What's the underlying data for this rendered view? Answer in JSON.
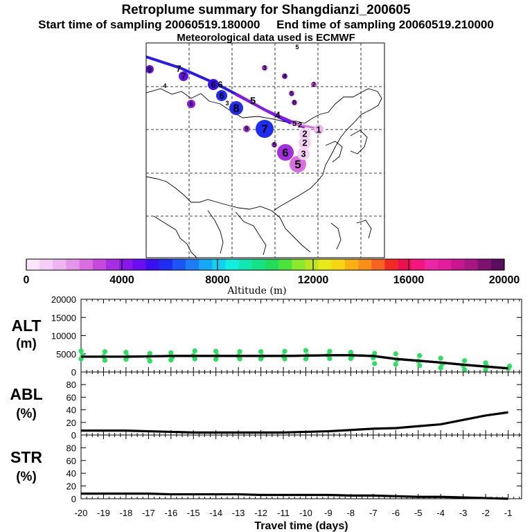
{
  "title": "Retroplume summary for Shangdianzi_200605",
  "subtitle_start": "Start time of sampling 20060519.180000",
  "subtitle_end": "End time of sampling 20060519.210000",
  "met_note": "Meteorological data used is ECMWF",
  "colorbar": {
    "label": "Altitude (m)",
    "ticks": [
      "0",
      "4000",
      "8000",
      "12000",
      "16000",
      "20000"
    ],
    "colors": [
      "#fbe6fb",
      "#f5cff5",
      "#eeb5ee",
      "#e595e8",
      "#d86ee0",
      "#c847dc",
      "#a62ee0",
      "#8a17ea",
      "#6a0ef2",
      "#3b10f0",
      "#1f2cf2",
      "#1a55f7",
      "#1b7cf6",
      "#16a7f5",
      "#0fd2f2",
      "#10eee0",
      "#0fe8ae",
      "#13e486",
      "#22dd5a",
      "#4ce43a",
      "#88ea2a",
      "#bde51f",
      "#e7e918",
      "#f6d60f",
      "#f8b013",
      "#f88f18",
      "#f6641d",
      "#f22a24",
      "#f00e52",
      "#f5157e",
      "#f025a5",
      "#e21c9c",
      "#c8168e",
      "#a81682",
      "#7d1270",
      "#5c0d5f"
    ]
  },
  "map": {
    "plume_labels": [
      {
        "text": "5",
        "x": 430,
        "y": 237,
        "size": 17,
        "color": "#d86ee0",
        "r": 12
      },
      {
        "text": "6",
        "x": 412,
        "y": 220,
        "size": 17,
        "color": "#a62ee0",
        "r": 12
      },
      {
        "text": "5",
        "x": 396,
        "y": 209,
        "size": 9,
        "color": "#a62ee0",
        "r": 4
      },
      {
        "text": "3",
        "x": 438,
        "y": 222,
        "size": 13,
        "color": "#f5cff5",
        "r": 9
      },
      {
        "text": "2",
        "x": 440,
        "y": 206,
        "size": 13,
        "color": "#f5cff5",
        "r": 9
      },
      {
        "text": "2",
        "x": 440,
        "y": 193,
        "size": 13,
        "color": "#f5cff5",
        "r": 8
      },
      {
        "text": "1",
        "x": 460,
        "y": 187,
        "size": 13,
        "color": "#eeb5ee",
        "r": 7
      },
      {
        "text": "5",
        "x": 425,
        "y": 178,
        "size": 11,
        "color": "#e595e8",
        "r": 0
      },
      {
        "text": "2",
        "x": 433,
        "y": 180,
        "size": 11,
        "color": "#eeb5ee",
        "r": 0
      },
      {
        "text": "4",
        "x": 401,
        "y": 166,
        "size": 13,
        "color": "#000000",
        "r": 0
      },
      {
        "text": "7",
        "x": 382,
        "y": 186,
        "size": 17,
        "color": "#1f2cf2",
        "r": 13
      },
      {
        "text": "9",
        "x": 356,
        "y": 186,
        "size": 9,
        "color": "#a62ee0",
        "r": 5
      },
      {
        "text": "8",
        "x": 341,
        "y": 156,
        "size": 17,
        "color": "#1f2cf2",
        "r": 10
      },
      {
        "text": "5",
        "x": 365,
        "y": 145,
        "size": 15,
        "color": "#000000",
        "r": 0
      },
      {
        "text": "3",
        "x": 328,
        "y": 149,
        "size": 9,
        "color": "#000000",
        "r": 0
      },
      {
        "text": "6",
        "x": 320,
        "y": 138,
        "size": 13,
        "color": "#1f2cf2",
        "r": 8
      },
      {
        "text": "6",
        "x": 308,
        "y": 122,
        "size": 13,
        "color": "#3b10f0",
        "r": 8
      },
      {
        "text": "6",
        "x": 318,
        "y": 122,
        "size": 13,
        "color": "#000000",
        "r": 0
      },
      {
        "text": "7",
        "x": 265,
        "y": 110,
        "size": 13,
        "color": "#6a0ef2",
        "r": 7
      },
      {
        "text": "7",
        "x": 258,
        "y": 99,
        "size": 13,
        "color": "#000000",
        "r": 0
      },
      {
        "text": "9",
        "x": 216,
        "y": 100,
        "size": 11,
        "color": "#6a0ef2",
        "r": 6
      },
      {
        "text": "4",
        "x": 238,
        "y": 124,
        "size": 9,
        "color": "#000000",
        "r": 0
      },
      {
        "text": "6",
        "x": 276,
        "y": 150,
        "size": 9,
        "color": "#8a17ea",
        "r": 6
      },
      {
        "text": "3",
        "x": 382,
        "y": 98,
        "size": 9,
        "color": "#a62ee0",
        "r": 4
      },
      {
        "text": "4",
        "x": 411,
        "y": 110,
        "size": 9,
        "color": "#8a17ea",
        "r": 4
      },
      {
        "text": "5",
        "x": 429,
        "y": 68,
        "size": 9,
        "color": "#a62ee0",
        "r": 0
      },
      {
        "text": "2",
        "x": 453,
        "y": 122,
        "size": 9,
        "color": "#c847dc",
        "r": 4
      },
      {
        "text": "5",
        "x": 421,
        "y": 135,
        "size": 9,
        "color": "#a62ee0",
        "r": 4
      },
      {
        "text": "8",
        "x": 425,
        "y": 148,
        "size": 9,
        "color": "#a62ee0",
        "r": 4
      }
    ]
  },
  "chart_data": [
    {
      "type": "line",
      "panel": "ALT",
      "ylabel_line1": "ALT",
      "ylabel_line2": "(m)",
      "xlabel": "Travel time (days)",
      "x_ticks": [
        "-20",
        "-19",
        "-18",
        "-17",
        "-16",
        "-15",
        "-14",
        "-13",
        "-12",
        "-11",
        "-10",
        "-9",
        "-8",
        "-7",
        "-6",
        "-5",
        "-4",
        "-3",
        "-2",
        "-1"
      ],
      "y_ticks": [
        "0",
        "5000",
        "10000",
        "15000",
        "20000"
      ],
      "ylim": [
        0,
        20000
      ],
      "xlim": [
        -20,
        -0.4
      ],
      "series": [
        {
          "name": "mean altitude",
          "x": [
            -20,
            -19,
            -18,
            -17,
            -16,
            -15,
            -14,
            -13,
            -12,
            -11,
            -10,
            -9,
            -8,
            -7,
            -6,
            -5,
            -4,
            -3,
            -2,
            -1
          ],
          "values": [
            4200,
            4200,
            4200,
            4300,
            4400,
            4400,
            4400,
            4400,
            4400,
            4400,
            4500,
            4600,
            4600,
            4400,
            3600,
            3100,
            2600,
            2000,
            1500,
            1000
          ]
        },
        {
          "name": "cluster altitudes",
          "x": [
            -20,
            -20,
            -20,
            -19,
            -19,
            -19,
            -18,
            -18,
            -18,
            -17,
            -17,
            -17,
            -16,
            -16,
            -16,
            -15,
            -15,
            -15,
            -14,
            -14,
            -14,
            -13,
            -13,
            -13,
            -12,
            -12,
            -12,
            -11,
            -11,
            -11,
            -10,
            -10,
            -10,
            -9,
            -9,
            -9,
            -8,
            -8,
            -8,
            -7,
            -7,
            -7,
            -6,
            -6,
            -6,
            -5,
            -5,
            -5,
            -4,
            -4,
            -4,
            -3,
            -3,
            -3,
            -2,
            -2,
            -2,
            -1,
            -1
          ],
          "values": [
            5800,
            4500,
            3600,
            5600,
            4300,
            3200,
            5400,
            4300,
            3500,
            5100,
            4100,
            3000,
            5300,
            4100,
            3300,
            5800,
            4500,
            3600,
            5700,
            4500,
            3500,
            5600,
            4400,
            3600,
            5600,
            4300,
            3600,
            5700,
            4400,
            3600,
            5900,
            4500,
            3600,
            5700,
            4600,
            3700,
            5400,
            4400,
            3700,
            5100,
            3900,
            2300,
            5000,
            3400,
            2100,
            4500,
            3000,
            1800,
            3800,
            2200,
            1100,
            3100,
            1800,
            600,
            2500,
            1500,
            600,
            1600,
            900
          ]
        }
      ]
    },
    {
      "type": "line",
      "panel": "ABL",
      "ylabel_line1": "ABL",
      "ylabel_line2": "(%)",
      "y_ticks": [
        "0",
        "20",
        "40",
        "60",
        "80"
      ],
      "ylim": [
        0,
        100
      ],
      "xlim": [
        -20,
        -0.4
      ],
      "series": [
        {
          "name": "ABL fraction",
          "x": [
            -20,
            -19,
            -18,
            -17,
            -16,
            -15,
            -14,
            -13,
            -12,
            -11,
            -10,
            -9,
            -8,
            -7,
            -6,
            -5,
            -4,
            -3,
            -2,
            -1
          ],
          "values": [
            7,
            7,
            7,
            6,
            5,
            4,
            4,
            4,
            4,
            4,
            5,
            6,
            8,
            10,
            11,
            14,
            17,
            24,
            31,
            36
          ]
        }
      ]
    },
    {
      "type": "line",
      "panel": "STR",
      "ylabel_line1": "STR",
      "ylabel_line2": "(%)",
      "y_ticks": [
        "0",
        "20",
        "40",
        "60",
        "80"
      ],
      "ylim": [
        0,
        100
      ],
      "xlim": [
        -20,
        -0.4
      ],
      "series": [
        {
          "name": "STR fraction",
          "x": [
            -20,
            -19,
            -18,
            -17,
            -16,
            -15,
            -14,
            -13,
            -12,
            -11,
            -10,
            -9,
            -8,
            -7,
            -6,
            -5,
            -4,
            -3,
            -2,
            -1
          ],
          "values": [
            8,
            8,
            8,
            8,
            7,
            7,
            7,
            7,
            6,
            6,
            6,
            6,
            5,
            5,
            4,
            3,
            3,
            2,
            1,
            0
          ]
        }
      ]
    }
  ]
}
